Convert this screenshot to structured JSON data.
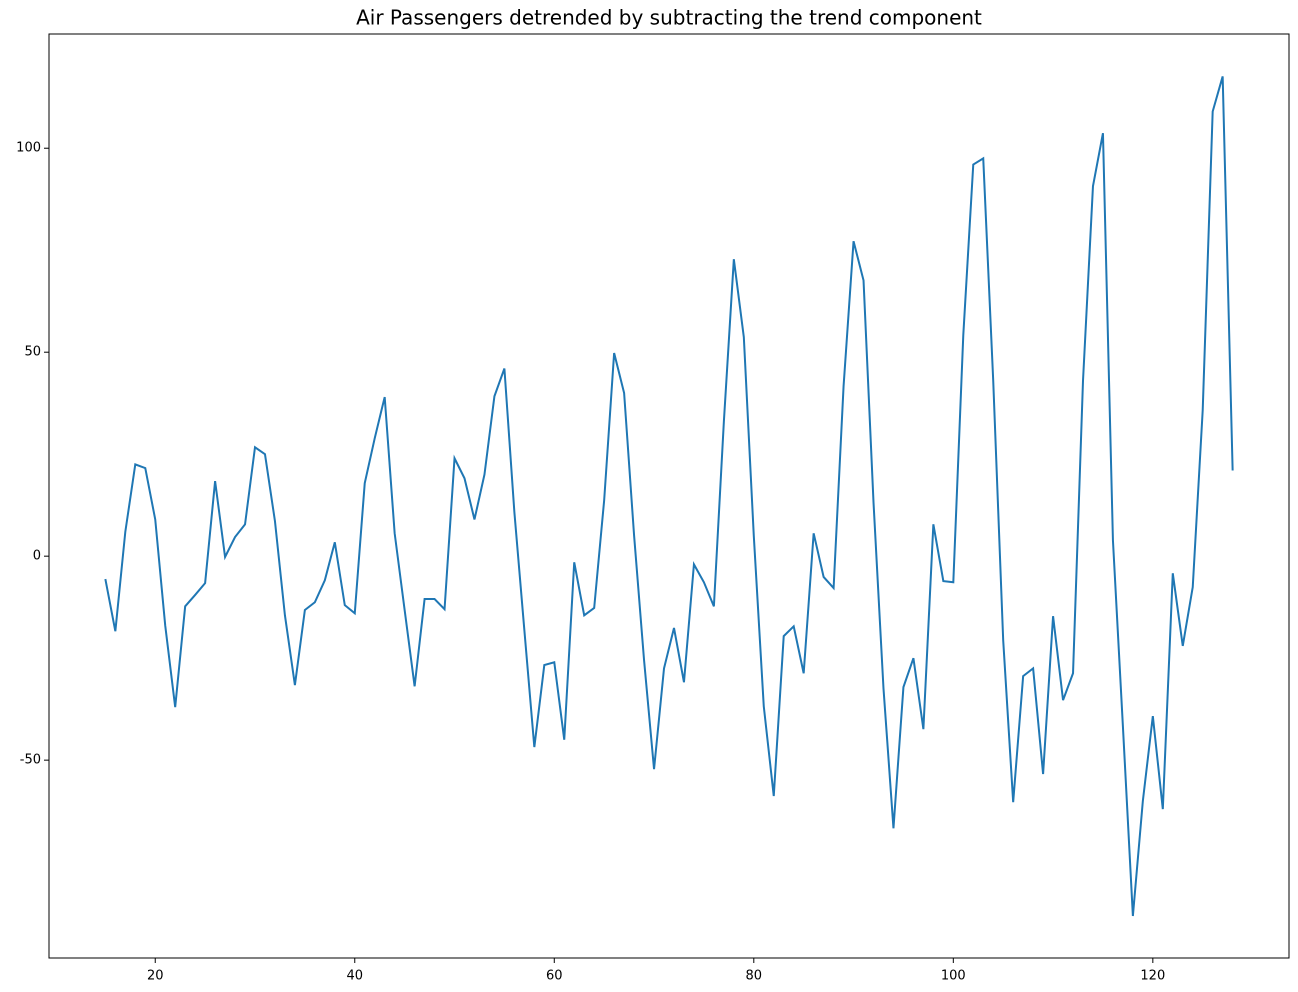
{
  "chart_data": {
    "type": "line",
    "title": "Air Passengers detrended by subtracting the trend component",
    "x": [
      15,
      16,
      17,
      18,
      19,
      20,
      21,
      22,
      23,
      24,
      25,
      26,
      27,
      28,
      29,
      30,
      31,
      32,
      33,
      34,
      35,
      36,
      37,
      38,
      39,
      40,
      41,
      42,
      43,
      44,
      45,
      46,
      47,
      48,
      49,
      50,
      51,
      52,
      53,
      54,
      55,
      56,
      57,
      58,
      59,
      60,
      61,
      62,
      63,
      64,
      65,
      66,
      67,
      68,
      69,
      70,
      71,
      72,
      73,
      74,
      75,
      76,
      77,
      78,
      79,
      80,
      81,
      82,
      83,
      84,
      85,
      86,
      87,
      88,
      89,
      90,
      91,
      92,
      93,
      94,
      95,
      96,
      97,
      98,
      99,
      100,
      101,
      102,
      103,
      104,
      105,
      106,
      107,
      108,
      109,
      110,
      111,
      112,
      113,
      114,
      115,
      116,
      117,
      118,
      119,
      120,
      121,
      122,
      123,
      124,
      125,
      126,
      127,
      128
    ],
    "series": [
      {
        "name": "detrended",
        "color": "#1f77b4",
        "values": [
          -5.6,
          -18.4,
          6,
          22.5,
          21.6,
          9,
          -17,
          -37,
          -12.3,
          -9.5,
          -6.6,
          18.4,
          -0.2,
          4.7,
          7.8,
          26.7,
          25,
          8.6,
          -14.5,
          -31.6,
          -13.2,
          -11.3,
          -5.9,
          3.4,
          -12,
          -14,
          17.9,
          28.9,
          39,
          5.6,
          -13.2,
          -31.9,
          -10.5,
          -10.5,
          -13,
          24,
          19.1,
          9,
          20,
          39.2,
          46,
          10.8,
          -18.1,
          -46.8,
          -26.7,
          -26,
          -45,
          -1.5,
          -14.5,
          -12.7,
          13.7,
          49.8,
          40,
          5.1,
          -25.5,
          -52.2,
          -27.5,
          -17.6,
          -30.9,
          -2,
          -6.4,
          -12.3,
          33,
          72.8,
          53.7,
          5,
          -36.8,
          -58.8,
          -19.6,
          -17.2,
          -28.7,
          5.6,
          -5.1,
          -7.8,
          41.7,
          77.2,
          67.6,
          13.2,
          -32.4,
          -66.7,
          -32.1,
          -25,
          -42.4,
          7.8,
          -6.1,
          -6.4,
          54.2,
          96,
          97.5,
          43,
          -20.6,
          -60.3,
          -29.4,
          -27.5,
          -53.4,
          -14.7,
          -35.3,
          -28.7,
          43,
          90.7,
          103.7,
          3.9,
          -41.7,
          -88.2,
          -60,
          -39.2,
          -62,
          -4.2,
          -22,
          -7.6,
          35.8,
          109,
          117.6,
          21
        ]
      }
    ],
    "xlim": [
      9.35,
      133.65
    ],
    "xticks": [
      20,
      40,
      60,
      80,
      100,
      120
    ],
    "ylim": [
      -98.5,
      128
    ],
    "yticks": [
      -50,
      0,
      50,
      100
    ],
    "grid": false
  }
}
